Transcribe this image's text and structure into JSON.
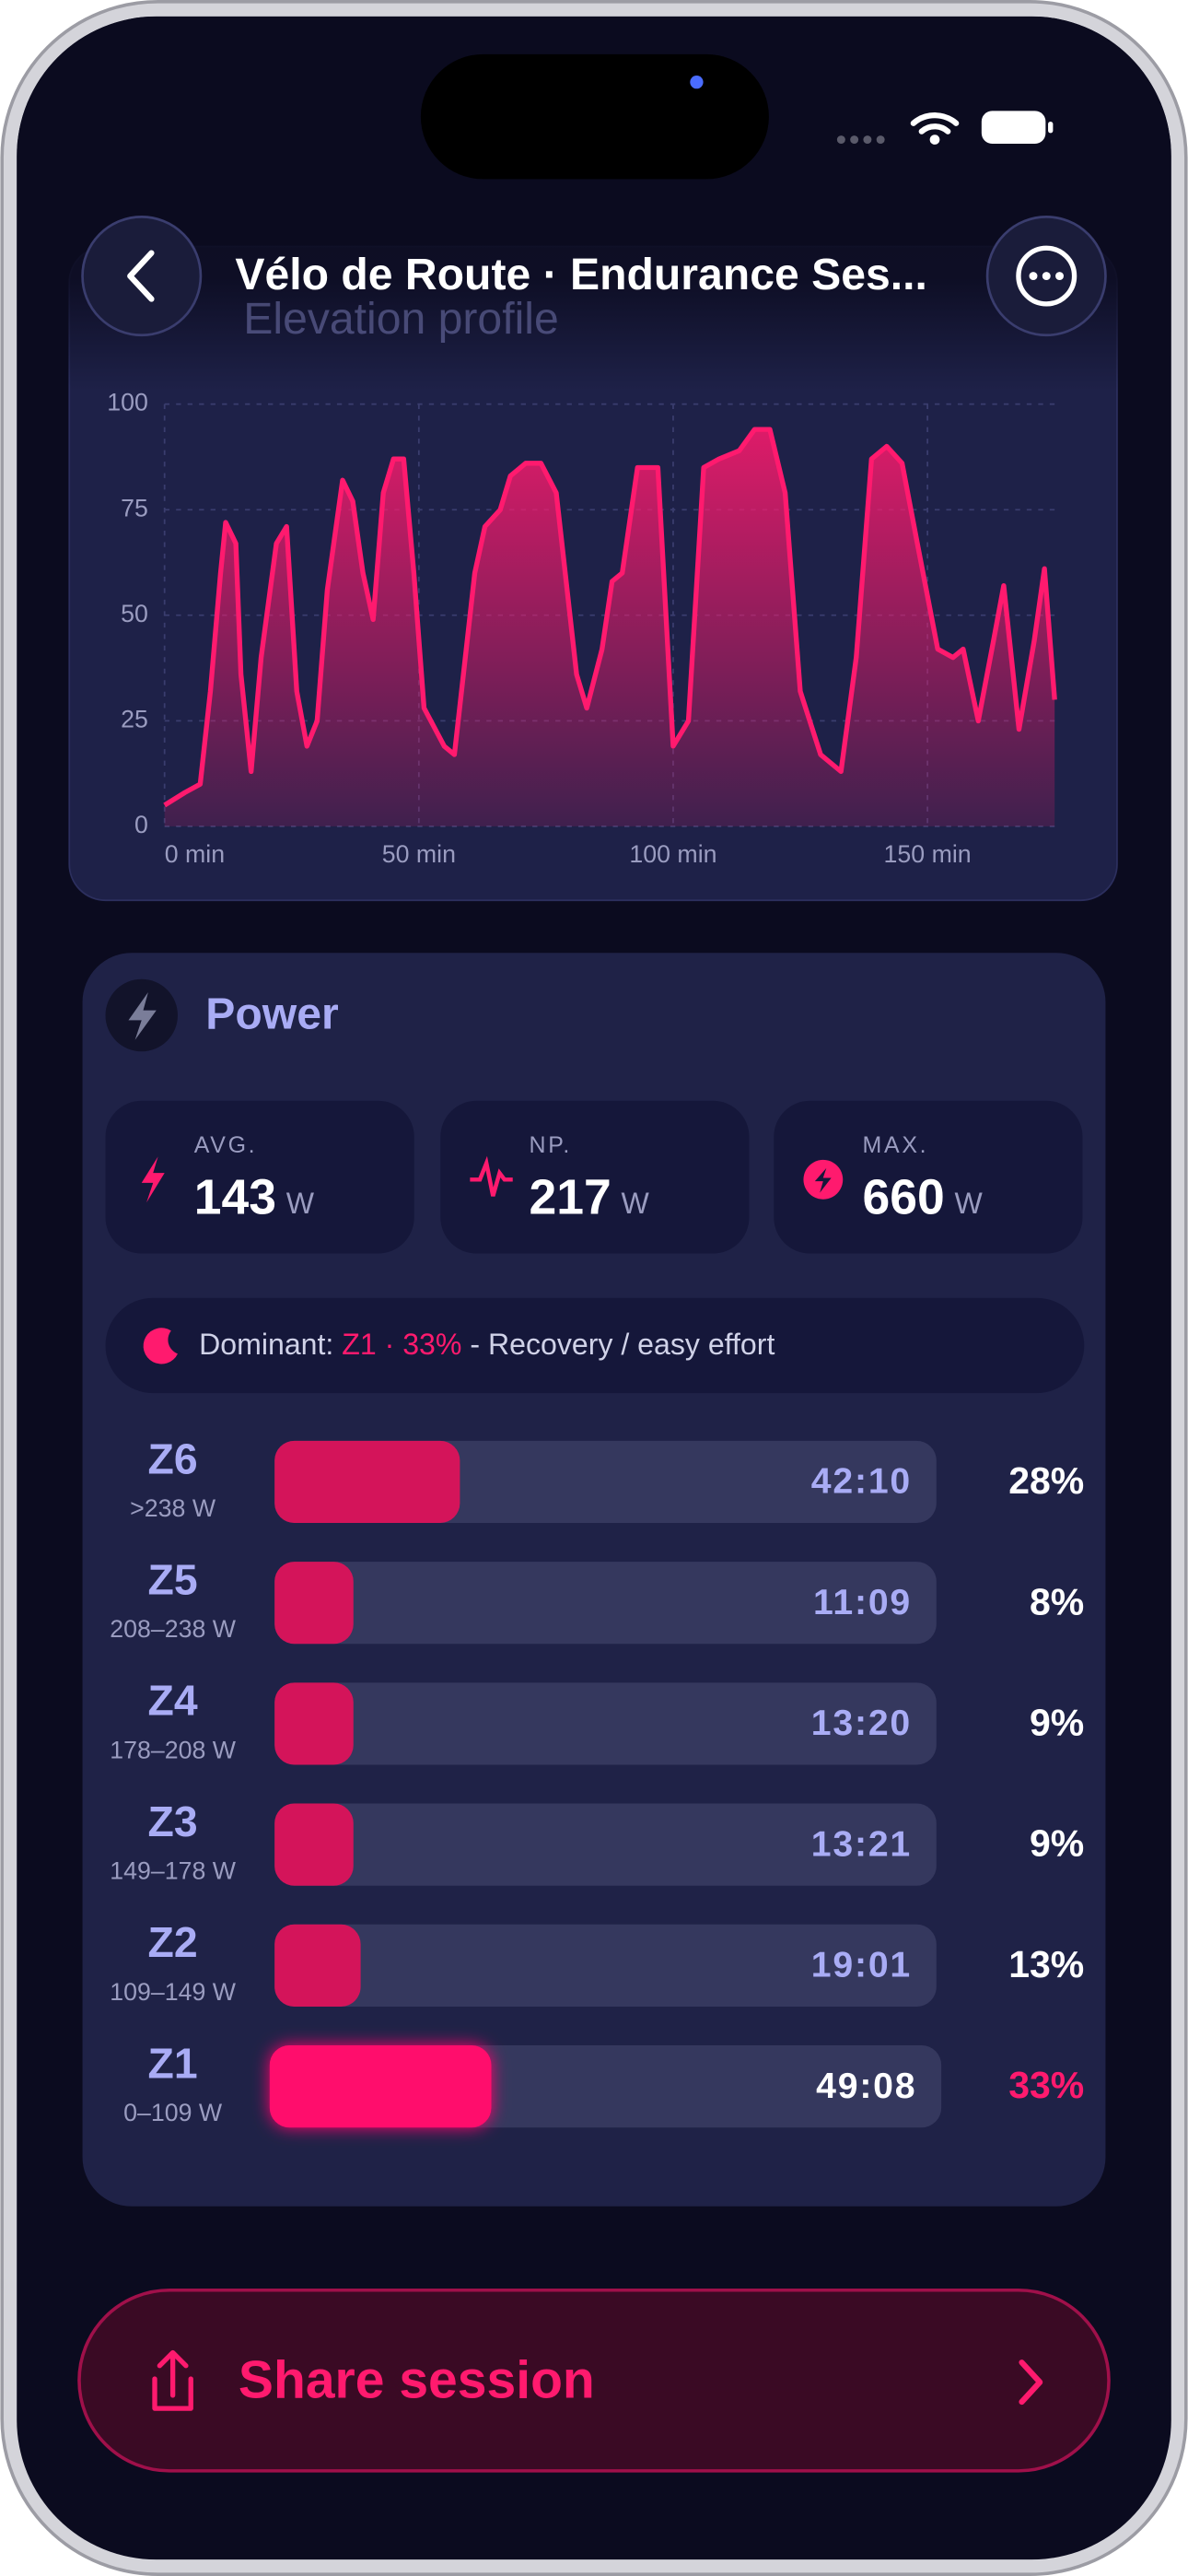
{
  "header": {
    "title": "Vélo de Route · Endurance Ses..."
  },
  "chart_data": {
    "type": "area",
    "title": "Elevation profile",
    "color": "#ff1a6e",
    "x": [
      0,
      4,
      7,
      9,
      11,
      12,
      14,
      15,
      17,
      19,
      22,
      24,
      26,
      28,
      30,
      32,
      35,
      37,
      39,
      41,
      43,
      45,
      47,
      49,
      51,
      55,
      57,
      61,
      63,
      66,
      68,
      71,
      74,
      77,
      81,
      83,
      86,
      88,
      90,
      93,
      97,
      100,
      103,
      106,
      109,
      113,
      116,
      119,
      122,
      125,
      129,
      133,
      136,
      139,
      142,
      145,
      148,
      152,
      155,
      157,
      160,
      163,
      165,
      168,
      171,
      173,
      175
    ],
    "values": [
      5,
      8,
      10,
      32,
      60,
      72,
      67,
      36,
      13,
      40,
      67,
      71,
      32,
      19,
      25,
      56,
      82,
      77,
      60,
      49,
      79,
      87,
      87,
      60,
      28,
      19,
      17,
      60,
      71,
      75,
      83,
      86,
      86,
      79,
      36,
      28,
      42,
      58,
      60,
      85,
      85,
      19,
      25,
      85,
      87,
      89,
      94,
      94,
      79,
      32,
      17,
      13,
      40,
      87,
      90,
      86,
      67,
      42,
      40,
      42,
      25,
      44,
      57,
      23,
      44,
      61,
      30
    ],
    "xlim": [
      0,
      175
    ],
    "ylim": [
      0,
      100
    ],
    "xticks": [
      {
        "value": 0,
        "label": "0 min"
      },
      {
        "value": 50,
        "label": "50 min"
      },
      {
        "value": 100,
        "label": "100 min"
      },
      {
        "value": 150,
        "label": "150 min"
      }
    ],
    "yticks": [
      0,
      25,
      50,
      75,
      100
    ],
    "grid": true
  },
  "power": {
    "title": "Power",
    "stats": [
      {
        "label": "AVG.",
        "value": 143,
        "unit": "W"
      },
      {
        "label": "NP.",
        "value": 217,
        "unit": "W"
      },
      {
        "label": "MAX.",
        "value": 660,
        "unit": "W"
      }
    ],
    "dominant": {
      "label": "Dominant:",
      "zone": "Z1 · 33%",
      "separator": "-",
      "description": "Recovery / easy effort"
    },
    "zones": [
      {
        "name": "Z6",
        "range": ">238 W",
        "time": "42:10",
        "percent": 28,
        "percent_label": "28%"
      },
      {
        "name": "Z5",
        "range": "208–238 W",
        "time": "11:09",
        "percent": 8,
        "percent_label": "8%"
      },
      {
        "name": "Z4",
        "range": "178–208 W",
        "time": "13:20",
        "percent": 9,
        "percent_label": "9%"
      },
      {
        "name": "Z3",
        "range": "149–178 W",
        "time": "13:21",
        "percent": 9,
        "percent_label": "9%"
      },
      {
        "name": "Z2",
        "range": "109–149 W",
        "time": "19:01",
        "percent": 13,
        "percent_label": "13%"
      },
      {
        "name": "Z1",
        "range": "0–109 W",
        "time": "49:08",
        "percent": 33,
        "percent_label": "33%"
      }
    ]
  },
  "share": {
    "label": "Share session"
  }
}
